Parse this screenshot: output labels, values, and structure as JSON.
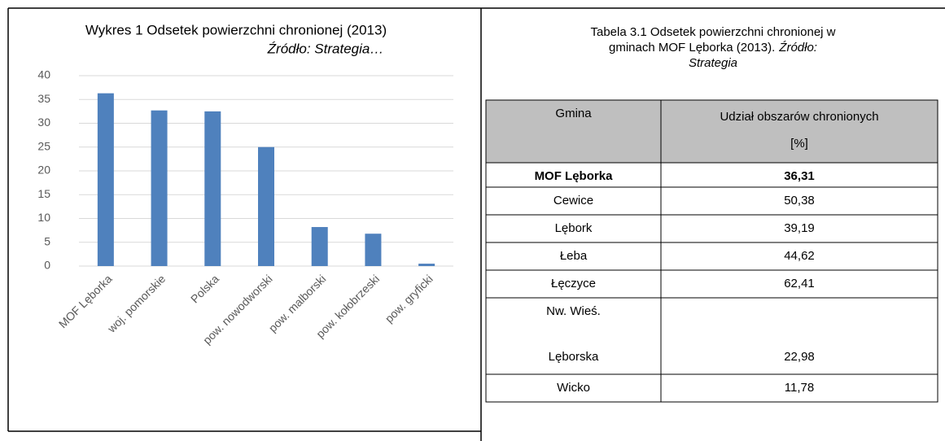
{
  "chart_data": {
    "type": "bar",
    "title": "Wykres 1 Odsetek powierzchni chronionej (2013)",
    "subtitle": "Źródło: Strategia…",
    "categories": [
      "MOF Lęborka",
      "woj. pomorskie",
      "Polska",
      "pow. nowodworski",
      "pow. malborski",
      "pow. kołobrzeski",
      "pow. gryficki"
    ],
    "values": [
      36.3,
      32.7,
      32.5,
      25,
      8.2,
      6.8,
      0.5
    ],
    "color": "#4f81bd",
    "ylim": [
      0,
      40
    ],
    "yticks": [
      0,
      5,
      10,
      15,
      20,
      25,
      30,
      35,
      40
    ],
    "grid": true
  },
  "table": {
    "caption": [
      "Tabela 3.1 Odsetek powierzchni chronionej w",
      "gminach MOF Lęborka (2013).",
      "Strategia"
    ],
    "source": "Źródło:",
    "header": [
      [
        "Gmina"
      ],
      [
        "Udział obszarów chronionych",
        "[%]"
      ]
    ],
    "rows": [
      [
        [
          "MOF Lęborka"
        ],
        "36,31"
      ],
      [
        [
          "Cewice"
        ],
        "50,38"
      ],
      [
        [
          "Lębork"
        ],
        "39,19"
      ],
      [
        [
          "Łeba"
        ],
        "44,62"
      ],
      [
        [
          "Łęczyce"
        ],
        "62,41"
      ],
      [
        [
          "Nw. Wieś.",
          "Lęborska"
        ],
        "22,98"
      ],
      [
        [
          "Wicko"
        ],
        "11,78"
      ]
    ]
  }
}
